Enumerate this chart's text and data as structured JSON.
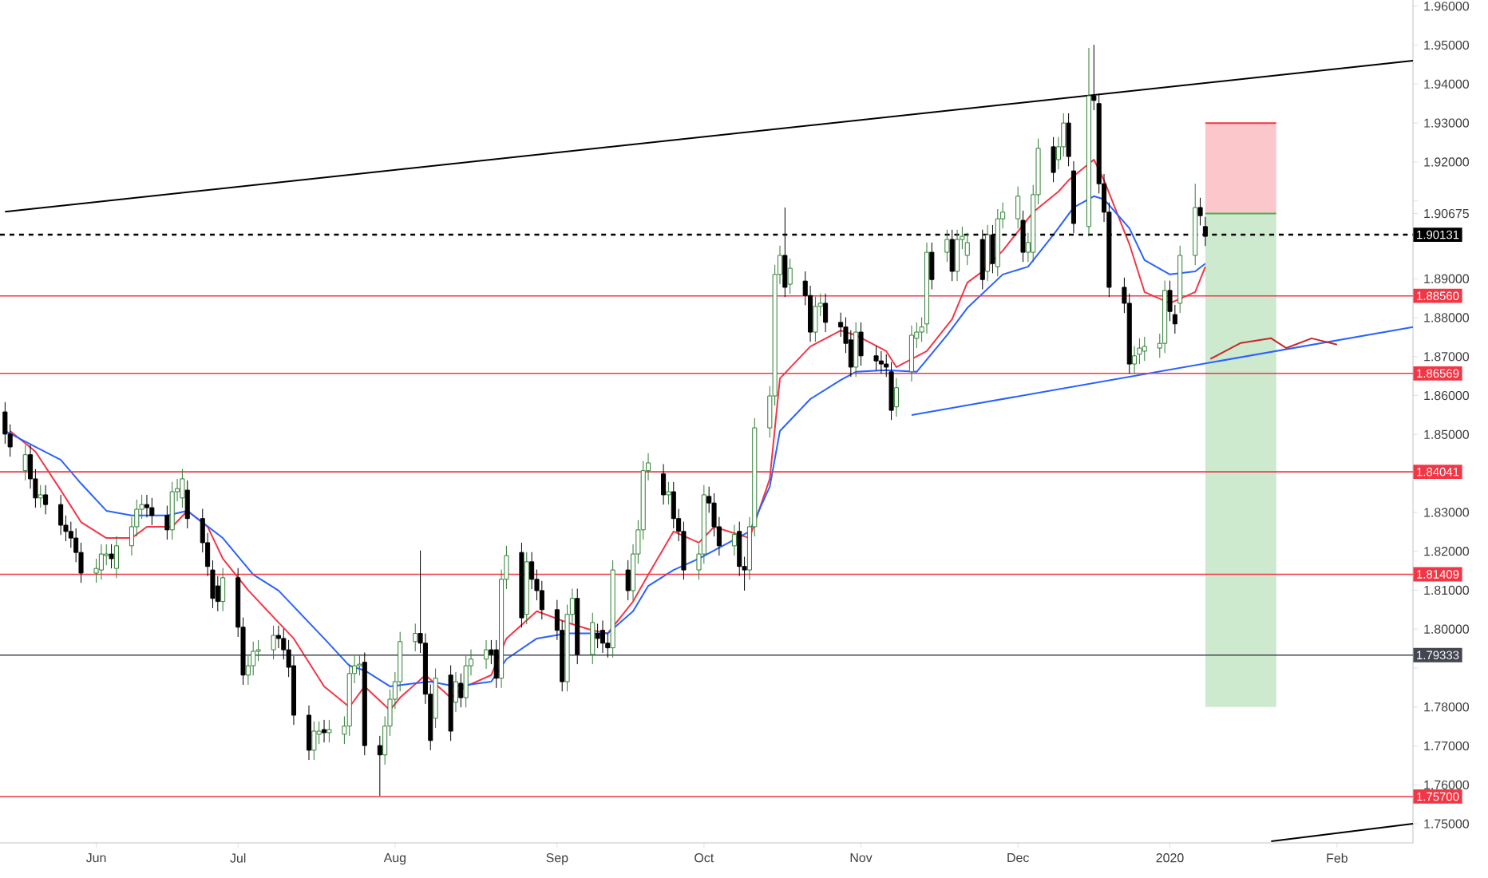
{
  "chart_data": {
    "type": "candlestick",
    "x": [
      "2019-05-16",
      "2019-05-17",
      "2019-05-20",
      "2019-05-21",
      "2019-05-22",
      "2019-05-23",
      "2019-05-24",
      "2019-05-27",
      "2019-05-28",
      "2019-05-29",
      "2019-05-30",
      "2019-05-31",
      "2019-06-03",
      "2019-06-04",
      "2019-06-05",
      "2019-06-06",
      "2019-06-07",
      "2019-06-10",
      "2019-06-11",
      "2019-06-12",
      "2019-06-13",
      "2019-06-14",
      "2019-06-17",
      "2019-06-18",
      "2019-06-19",
      "2019-06-20",
      "2019-06-21",
      "2019-06-24",
      "2019-06-25",
      "2019-06-26",
      "2019-06-27",
      "2019-06-28",
      "2019-07-01",
      "2019-07-02",
      "2019-07-03",
      "2019-07-04",
      "2019-07-05",
      "2019-07-08",
      "2019-07-09",
      "2019-07-10",
      "2019-07-11",
      "2019-07-12",
      "2019-07-15",
      "2019-07-16",
      "2019-07-17",
      "2019-07-18",
      "2019-07-19",
      "2019-07-22",
      "2019-07-23",
      "2019-07-24",
      "2019-07-25",
      "2019-07-26",
      "2019-07-29",
      "2019-07-30",
      "2019-07-31",
      "2019-08-01",
      "2019-08-02",
      "2019-08-05",
      "2019-08-06",
      "2019-08-07",
      "2019-08-08",
      "2019-08-09",
      "2019-08-12",
      "2019-08-13",
      "2019-08-14",
      "2019-08-15",
      "2019-08-16",
      "2019-08-19",
      "2019-08-20",
      "2019-08-21",
      "2019-08-22",
      "2019-08-23",
      "2019-08-26",
      "2019-08-27",
      "2019-08-28",
      "2019-08-29",
      "2019-08-30",
      "2019-09-02",
      "2019-09-03",
      "2019-09-04",
      "2019-09-05",
      "2019-09-06",
      "2019-09-09",
      "2019-09-10",
      "2019-09-11",
      "2019-09-12",
      "2019-09-13",
      "2019-09-16",
      "2019-09-17",
      "2019-09-18",
      "2019-09-19",
      "2019-09-20",
      "2019-09-23",
      "2019-09-24",
      "2019-09-25",
      "2019-09-26",
      "2019-09-27",
      "2019-09-30",
      "2019-10-01",
      "2019-10-02",
      "2019-10-03",
      "2019-10-04",
      "2019-10-07",
      "2019-10-08",
      "2019-10-09",
      "2019-10-10",
      "2019-10-11",
      "2019-10-14",
      "2019-10-15",
      "2019-10-16",
      "2019-10-17",
      "2019-10-18",
      "2019-10-21",
      "2019-10-22",
      "2019-10-23",
      "2019-10-24",
      "2019-10-25",
      "2019-10-28",
      "2019-10-29",
      "2019-10-30",
      "2019-10-31",
      "2019-11-01",
      "2019-11-04",
      "2019-11-05",
      "2019-11-06",
      "2019-11-07",
      "2019-11-08",
      "2019-11-11",
      "2019-11-12",
      "2019-11-13",
      "2019-11-14",
      "2019-11-15",
      "2019-11-18",
      "2019-11-19",
      "2019-11-20",
      "2019-11-21",
      "2019-11-22",
      "2019-11-25",
      "2019-11-26",
      "2019-11-27",
      "2019-11-28",
      "2019-11-29",
      "2019-12-02",
      "2019-12-03",
      "2019-12-04",
      "2019-12-05",
      "2019-12-06",
      "2019-12-09",
      "2019-12-10",
      "2019-12-11",
      "2019-12-12",
      "2019-12-13",
      "2019-12-16",
      "2019-12-17",
      "2019-12-18",
      "2019-12-19",
      "2019-12-20",
      "2019-12-23",
      "2019-12-24",
      "2019-12-25",
      "2019-12-26",
      "2019-12-27",
      "2019-12-30",
      "2019-12-31",
      "2020-01-01",
      "2020-01-02",
      "2020-01-03",
      "2020-01-06",
      "2020-01-07",
      "2020-01-08"
    ],
    "ohlc": [
      [
        1.8558,
        1.8583,
        1.8476,
        1.8501
      ],
      [
        1.8501,
        1.8526,
        1.8443,
        1.8468
      ],
      [
        1.8407,
        1.8473,
        1.8382,
        1.8448
      ],
      [
        1.8448,
        1.8473,
        1.8361,
        1.8386
      ],
      [
        1.8386,
        1.8411,
        1.8312,
        1.8337
      ],
      [
        1.8337,
        1.837,
        1.8312,
        1.8345
      ],
      [
        1.8345,
        1.837,
        1.8295,
        1.832
      ],
      [
        1.832,
        1.8345,
        1.8242,
        1.8267
      ],
      [
        1.8267,
        1.8292,
        1.8226,
        1.8251
      ],
      [
        1.8251,
        1.8276,
        1.8209,
        1.8234
      ],
      [
        1.8234,
        1.8259,
        1.8172,
        1.8197
      ],
      [
        1.8197,
        1.8222,
        1.8119,
        1.8144
      ],
      [
        1.8144,
        1.8181,
        1.8119,
        1.8156
      ],
      [
        1.8152,
        1.8218,
        1.8127,
        1.8193
      ],
      [
        1.8189,
        1.8218,
        1.8164,
        1.8193
      ],
      [
        1.8193,
        1.8218,
        1.8156,
        1.8181
      ],
      [
        1.8156,
        1.8239,
        1.8131,
        1.8214
      ],
      [
        1.8214,
        1.8288,
        1.8189,
        1.8263
      ],
      [
        1.8263,
        1.8333,
        1.8238,
        1.8308
      ],
      [
        1.8308,
        1.8345,
        1.8283,
        1.832
      ],
      [
        1.832,
        1.8345,
        1.8287,
        1.8312
      ],
      [
        1.8312,
        1.8337,
        1.8267,
        1.8292
      ],
      [
        1.8292,
        1.8317,
        1.823,
        1.8255
      ],
      [
        1.8255,
        1.8378,
        1.823,
        1.8353
      ],
      [
        1.8353,
        1.8386,
        1.8328,
        1.8361
      ],
      [
        1.8337,
        1.8411,
        1.8312,
        1.8386
      ],
      [
        1.8357,
        1.8382,
        1.8259,
        1.8284
      ],
      [
        1.8284,
        1.8309,
        1.8197,
        1.8222
      ],
      [
        1.8222,
        1.8247,
        1.8136,
        1.8161
      ],
      [
        1.8152,
        1.8177,
        1.8054,
        1.8079
      ],
      [
        1.8111,
        1.8136,
        1.8046,
        1.8071
      ],
      [
        1.8071,
        1.8157,
        1.8046,
        1.8132
      ],
      [
        1.8132,
        1.8157,
        1.798,
        1.8005
      ],
      [
        1.8005,
        1.803,
        1.7857,
        1.7882
      ],
      [
        1.7882,
        1.7931,
        1.7857,
        1.7906
      ],
      [
        1.7906,
        1.7968,
        1.7881,
        1.7943
      ],
      [
        1.7943,
        1.7972,
        1.7918,
        1.7947
      ],
      [
        1.7947,
        1.8009,
        1.7922,
        1.7984
      ],
      [
        1.7984,
        1.8009,
        1.7951,
        1.7976
      ],
      [
        1.7976,
        1.8001,
        1.7922,
        1.7947
      ],
      [
        1.7947,
        1.7972,
        1.7877,
        1.7902
      ],
      [
        1.7906,
        1.7931,
        1.7754,
        1.7779
      ],
      [
        1.7779,
        1.7804,
        1.7664,
        1.7689
      ],
      [
        1.7689,
        1.7763,
        1.7664,
        1.7738
      ],
      [
        1.773,
        1.7763,
        1.7705,
        1.7738
      ],
      [
        1.7742,
        1.7767,
        1.7709,
        1.7734
      ],
      [
        1.7734,
        1.7767,
        1.7709,
        1.7742
      ],
      [
        1.773,
        1.7776,
        1.7705,
        1.7751
      ],
      [
        1.7751,
        1.7911,
        1.7726,
        1.7886
      ],
      [
        1.7886,
        1.7931,
        1.7861,
        1.7906
      ],
      [
        1.7906,
        1.7935,
        1.7881,
        1.791
      ],
      [
        1.7915,
        1.794,
        1.7676,
        1.7701
      ],
      [
        1.7701,
        1.7726,
        1.7572,
        1.7677
      ],
      [
        1.7677,
        1.7776,
        1.7652,
        1.7751
      ],
      [
        1.7751,
        1.7845,
        1.7726,
        1.782
      ],
      [
        1.782,
        1.789,
        1.7795,
        1.7865
      ],
      [
        1.7865,
        1.7993,
        1.784,
        1.7968
      ],
      [
        1.7968,
        1.8014,
        1.7943,
        1.7989
      ],
      [
        1.7989,
        1.8202,
        1.7939,
        1.7964
      ],
      [
        1.7964,
        1.7989,
        1.7808,
        1.7833
      ],
      [
        1.7833,
        1.7858,
        1.7689,
        1.7714
      ],
      [
        1.7771,
        1.7899,
        1.7746,
        1.7874
      ],
      [
        1.7882,
        1.7907,
        1.7713,
        1.7738
      ],
      [
        1.7812,
        1.789,
        1.7787,
        1.7865
      ],
      [
        1.7861,
        1.7886,
        1.7799,
        1.7824
      ],
      [
        1.7824,
        1.7931,
        1.7799,
        1.7906
      ],
      [
        1.7906,
        1.7948,
        1.7881,
        1.7923
      ],
      [
        1.7923,
        1.7972,
        1.7898,
        1.7947
      ],
      [
        1.7947,
        1.7972,
        1.791,
        1.7935
      ],
      [
        1.7947,
        1.7972,
        1.7849,
        1.7874
      ],
      [
        1.7874,
        1.8153,
        1.7849,
        1.8128
      ],
      [
        1.8128,
        1.8214,
        1.8103,
        1.8189
      ],
      [
        1.8197,
        1.8222,
        1.8004,
        1.8029
      ],
      [
        1.8038,
        1.8198,
        1.8013,
        1.8173
      ],
      [
        1.8173,
        1.8198,
        1.8103,
        1.8128
      ],
      [
        1.8128,
        1.8153,
        1.8074,
        1.8099
      ],
      [
        1.8099,
        1.8124,
        1.8025,
        1.805
      ],
      [
        1.805,
        1.8075,
        1.7972,
        1.7997
      ],
      [
        1.7997,
        1.8022,
        1.784,
        1.7865
      ],
      [
        1.7865,
        1.8063,
        1.784,
        1.8038
      ],
      [
        1.8038,
        1.8104,
        1.8013,
        1.8079
      ],
      [
        1.8079,
        1.8104,
        1.791,
        1.7935
      ],
      [
        1.7935,
        1.8042,
        1.791,
        1.8017
      ],
      [
        1.7989,
        1.8014,
        1.7951,
        1.7976
      ],
      [
        1.7997,
        1.8022,
        1.7939,
        1.7964
      ],
      [
        1.7964,
        1.7989,
        1.7927,
        1.7952
      ],
      [
        1.7952,
        1.8177,
        1.7927,
        1.8152
      ],
      [
        1.8152,
        1.8177,
        1.8074,
        1.8099
      ],
      [
        1.8099,
        1.8218,
        1.8074,
        1.8193
      ],
      [
        1.8193,
        1.828,
        1.8168,
        1.8255
      ],
      [
        1.8255,
        1.8432,
        1.823,
        1.8407
      ],
      [
        1.8407,
        1.8452,
        1.8382,
        1.8427
      ],
      [
        1.8399,
        1.8424,
        1.832,
        1.8345
      ],
      [
        1.8345,
        1.8378,
        1.832,
        1.8353
      ],
      [
        1.8353,
        1.8378,
        1.8259,
        1.8284
      ],
      [
        1.8284,
        1.8309,
        1.8226,
        1.8251
      ],
      [
        1.8251,
        1.8276,
        1.8127,
        1.8152
      ],
      [
        1.8152,
        1.8218,
        1.8127,
        1.8193
      ],
      [
        1.8193,
        1.837,
        1.8168,
        1.8345
      ],
      [
        1.8341,
        1.8366,
        1.8299,
        1.8324
      ],
      [
        1.8324,
        1.8349,
        1.8238,
        1.8263
      ],
      [
        1.8263,
        1.8288,
        1.8189,
        1.8214
      ],
      [
        1.8214,
        1.8268,
        1.8189,
        1.8243
      ],
      [
        1.8251,
        1.8276,
        1.8136,
        1.8161
      ],
      [
        1.8161,
        1.8186,
        1.8099,
        1.8152
      ],
      [
        1.8152,
        1.8288,
        1.8127,
        1.8263
      ],
      [
        1.8263,
        1.8542,
        1.8238,
        1.8517
      ],
      [
        1.8517,
        1.8624,
        1.8492,
        1.8599
      ],
      [
        1.8599,
        1.8936,
        1.8574,
        1.8911
      ],
      [
        1.8911,
        1.8985,
        1.8886,
        1.896
      ],
      [
        1.896,
        1.9083,
        1.8853,
        1.8878
      ],
      [
        1.8886,
        1.8952,
        1.8861,
        1.8927
      ],
      [
        1.8894,
        1.8919,
        1.8832,
        1.8857
      ],
      [
        1.8857,
        1.8882,
        1.8738,
        1.8763
      ],
      [
        1.8763,
        1.8854,
        1.8738,
        1.8829
      ],
      [
        1.8829,
        1.8862,
        1.8804,
        1.8837
      ],
      [
        1.8837,
        1.8862,
        1.8763,
        1.8788
      ],
      [
        1.8788,
        1.8813,
        1.8751,
        1.8776
      ],
      [
        1.8776,
        1.8801,
        1.8709,
        1.8734
      ],
      [
        1.8743,
        1.8768,
        1.8648,
        1.8673
      ],
      [
        1.8673,
        1.8788,
        1.8648,
        1.8763
      ],
      [
        1.8763,
        1.8788,
        1.8677,
        1.8702
      ],
      [
        1.8702,
        1.8727,
        1.8664,
        1.8689
      ],
      [
        1.8689,
        1.8714,
        1.8656,
        1.8681
      ],
      [
        1.8681,
        1.8706,
        1.8648,
        1.8673
      ],
      [
        1.8661,
        1.8686,
        1.8537,
        1.8562
      ],
      [
        1.8571,
        1.8645,
        1.8546,
        1.862
      ],
      [
        1.8661,
        1.878,
        1.8636,
        1.8755
      ],
      [
        1.8747,
        1.8788,
        1.8722,
        1.8763
      ],
      [
        1.8763,
        1.8801,
        1.8738,
        1.8776
      ],
      [
        1.8784,
        1.8993,
        1.8759,
        1.8968
      ],
      [
        1.8968,
        1.8993,
        1.8873,
        1.8898
      ],
      [
        1.8968,
        1.9026,
        1.8943,
        1.9001
      ],
      [
        1.9001,
        1.9026,
        1.8894,
        1.8919
      ],
      [
        1.8919,
        1.9026,
        1.8894,
        1.9001
      ],
      [
        1.9001,
        1.9034,
        1.8976,
        1.9009
      ],
      [
        1.896,
        1.9018,
        1.8935,
        1.8993
      ],
      [
        1.9001,
        1.9026,
        1.8873,
        1.8898
      ],
      [
        1.8919,
        1.9038,
        1.8894,
        1.9013
      ],
      [
        1.9013,
        1.9038,
        1.8914,
        1.8939
      ],
      [
        1.8931,
        1.9079,
        1.8906,
        1.9054
      ],
      [
        1.9054,
        1.9096,
        1.9029,
        1.9071
      ],
      [
        1.9054,
        1.9137,
        1.9029,
        1.9112
      ],
      [
        1.905,
        1.9075,
        1.8943,
        1.8968
      ],
      [
        1.8968,
        1.9018,
        1.8943,
        1.8993
      ],
      [
        1.8968,
        1.9141,
        1.8943,
        1.9116
      ],
      [
        1.9116,
        1.926,
        1.9091,
        1.9235
      ],
      [
        1.9239,
        1.9264,
        1.9148,
        1.9173
      ],
      [
        1.9206,
        1.9264,
        1.9181,
        1.9239
      ],
      [
        1.9239,
        1.9325,
        1.9214,
        1.93
      ],
      [
        1.93,
        1.9325,
        1.9189,
        1.9214
      ],
      [
        1.9177,
        1.9202,
        1.9017,
        1.9042
      ],
      [
        1.9034,
        1.9493,
        1.9009,
        1.937
      ],
      [
        1.937,
        1.9501,
        1.9333,
        1.9358
      ],
      [
        1.935,
        1.9375,
        1.9119,
        1.9144
      ],
      [
        1.9144,
        1.9169,
        1.9046,
        1.9071
      ],
      [
        1.9071,
        1.9096,
        1.8853,
        1.8878
      ],
      [
        1.8878,
        1.8903,
        1.8812,
        1.8837
      ],
      [
        1.8837,
        1.8862,
        1.8656,
        1.8681
      ],
      [
        1.8681,
        1.8727,
        1.8656,
        1.8702
      ],
      [
        1.8706,
        1.8747,
        1.8681,
        1.8722
      ],
      [
        1.8714,
        1.8751,
        1.8689,
        1.8726
      ],
      [
        1.8722,
        1.8759,
        1.8697,
        1.8734
      ],
      [
        1.8734,
        1.8895,
        1.8709,
        1.887
      ],
      [
        1.887,
        1.8895,
        1.8791,
        1.8816
      ],
      [
        1.8808,
        1.8833,
        1.8759,
        1.8784
      ],
      [
        1.8837,
        1.8985,
        1.8812,
        1.896
      ],
      [
        1.896,
        1.9144,
        1.8935,
        1.9083
      ],
      [
        1.9083,
        1.9108,
        1.9037,
        1.9062
      ],
      [
        1.9034,
        1.9059,
        1.8984,
        1.9009
      ]
    ],
    "series": [
      {
        "type": "line",
        "color": "#f23645",
        "x": [
          "2020-01-08",
          "2020-01-22"
        ],
        "values": [
          1.93,
          1.93
        ],
        "upper": [
          1.93,
          1.93
        ],
        "lower": [
          1.90675,
          1.90675
        ]
      },
      {
        "type": "line",
        "color": "#4caf50",
        "x": [
          "2020-01-08",
          "2020-01-22"
        ],
        "values": [
          1.90675,
          1.90675
        ],
        "upper": [
          1.90675,
          1.90675
        ],
        "lower": [
          1.78,
          1.78
        ]
      },
      {
        "type": "line",
        "color": "#f23645",
        "x": [
          "2019-05-17",
          "2019-05-22",
          "2019-05-27",
          "2019-05-31",
          "2019-06-05",
          "2019-06-10",
          "2019-06-13",
          "2019-06-18",
          "2019-06-21",
          "2019-06-25",
          "2019-06-28",
          "2019-07-03",
          "2019-07-09",
          "2019-07-12",
          "2019-07-18",
          "2019-07-23",
          "2019-07-26",
          "2019-07-31",
          "2019-08-02",
          "2019-08-07",
          "2019-08-12",
          "2019-08-15",
          "2019-08-20",
          "2019-08-23",
          "2019-08-29",
          "2019-09-04",
          "2019-09-09",
          "2019-09-12",
          "2019-09-17",
          "2019-09-20",
          "2019-09-25",
          "2019-09-30",
          "2019-10-03",
          "2019-10-10",
          "2019-10-14",
          "2019-10-16",
          "2019-10-22",
          "2019-10-28",
          "2019-10-31",
          "2019-11-06",
          "2019-11-08",
          "2019-11-14",
          "2019-11-19",
          "2019-11-22",
          "2019-11-25",
          "2019-11-29",
          "2019-12-05",
          "2019-12-10",
          "2019-12-12",
          "2019-12-17",
          "2019-12-19",
          "2019-12-24",
          "2019-12-27",
          "2020-01-01",
          "2020-01-06",
          "2020-01-08"
        ],
        "values": [
          1.8509,
          1.8456,
          1.8357,
          1.8275,
          1.8234,
          1.8234,
          1.8263,
          1.8263,
          1.8304,
          1.8263,
          1.8181,
          1.81,
          1.8017,
          1.7976,
          1.7853,
          1.78,
          1.7853,
          1.7792,
          1.7824,
          1.7882,
          1.7824,
          1.7853,
          1.7882,
          1.7976,
          1.8046,
          1.8017,
          1.7997,
          1.7989,
          1.8071,
          1.814,
          1.8251,
          1.8222,
          1.8263,
          1.8234,
          1.8386,
          1.8644,
          1.8726,
          1.8767,
          1.8755,
          1.8714,
          1.8673,
          1.8714,
          1.8796,
          1.889,
          1.8919,
          1.8972,
          1.9071,
          1.9124,
          1.9153,
          1.9206,
          1.9153,
          1.8989,
          1.8866,
          1.8837,
          1.8866,
          1.8931
        ]
      },
      {
        "type": "line",
        "color": "#2962ff",
        "x": [
          "2019-05-16",
          "2019-05-22",
          "2019-05-27",
          "2019-05-31",
          "2019-06-05",
          "2019-06-10",
          "2019-06-17",
          "2019-06-21",
          "2019-06-28",
          "2019-07-04",
          "2019-07-09",
          "2019-07-12",
          "2019-07-18",
          "2019-07-23",
          "2019-07-26",
          "2019-07-31",
          "2019-08-05",
          "2019-08-08",
          "2019-08-13",
          "2019-08-20",
          "2019-08-23",
          "2019-08-29",
          "2019-09-04",
          "2019-09-09",
          "2019-09-12",
          "2019-09-17",
          "2019-09-20",
          "2019-09-25",
          "2019-09-30",
          "2019-10-03",
          "2019-10-10",
          "2019-10-14",
          "2019-10-16",
          "2019-10-22",
          "2019-10-28",
          "2019-10-31",
          "2019-11-06",
          "2019-11-12",
          "2019-11-18",
          "2019-11-22",
          "2019-11-29",
          "2019-12-04",
          "2019-12-09",
          "2019-12-13",
          "2019-12-17",
          "2019-12-19",
          "2019-12-24",
          "2019-12-27",
          "2020-01-01",
          "2020-01-06",
          "2020-01-08"
        ],
        "values": [
          1.8509,
          1.8468,
          1.8435,
          1.8374,
          1.8304,
          1.8292,
          1.8292,
          1.8304,
          1.8234,
          1.814,
          1.8099,
          1.8058,
          1.7976,
          1.7906,
          1.7894,
          1.7853,
          1.7861,
          1.7865,
          1.7853,
          1.7865,
          1.7923,
          1.7976,
          1.7989,
          1.7989,
          1.7989,
          1.8046,
          1.8111,
          1.8152,
          1.8181,
          1.8202,
          1.8251,
          1.8366,
          1.8509,
          1.8591,
          1.864,
          1.8661,
          1.8665,
          1.8661,
          1.8755,
          1.8825,
          1.8911,
          1.8931,
          1.9013,
          1.9083,
          1.9112,
          1.9104,
          1.903,
          1.8948,
          1.8911,
          1.8919,
          1.8939
        ]
      },
      {
        "type": "line",
        "color": "#000000",
        "x": [
          "2019-05-16",
          "2020-02-18"
        ],
        "values": [
          1.9072,
          1.946
        ]
      },
      {
        "type": "line",
        "color": "#000000",
        "x": [
          "2020-01-21",
          "2020-02-18"
        ],
        "values": [
          1.7455,
          1.75
        ]
      },
      {
        "type": "line",
        "color": "#2962ff",
        "x": [
          "2019-11-11",
          "2020-02-18"
        ],
        "values": [
          1.855,
          1.8776
        ]
      },
      {
        "type": "line",
        "color": "#c62828",
        "x": [
          "2020-01-09",
          "2020-01-15",
          "2020-01-21",
          "2020-01-24",
          "2020-01-29",
          "2020-02-03"
        ],
        "values": [
          1.8694,
          1.8735,
          1.8747,
          1.8722,
          1.8747,
          1.8731
        ]
      }
    ],
    "xlim": [
      "2019-05-15",
      "2020-02-18"
    ],
    "xticks": [
      {
        "value": "2019-06-03",
        "label": "Jun"
      },
      {
        "value": "2019-07-01",
        "label": "Jul"
      },
      {
        "value": "2019-08-01",
        "label": "Aug"
      },
      {
        "value": "2019-09-02",
        "label": "Sep"
      },
      {
        "value": "2019-10-01",
        "label": "Oct"
      },
      {
        "value": "2019-11-01",
        "label": "Nov"
      },
      {
        "value": "2019-12-02",
        "label": "Dec"
      },
      {
        "value": "2020-01-01",
        "label": "2020"
      },
      {
        "value": "2020-02-03",
        "label": "Feb"
      }
    ],
    "ylim": [
      1.7451,
      1.9616
    ],
    "yticks": [
      {
        "value": 1.75,
        "label": "1.75000"
      },
      {
        "value": 1.76,
        "label": "1.76000"
      },
      {
        "value": 1.77,
        "label": "1.77000"
      },
      {
        "value": 1.78,
        "label": "1.78000"
      },
      {
        "value": 1.79,
        "label": null
      },
      {
        "value": 1.8,
        "label": "1.80000"
      },
      {
        "value": 1.81,
        "label": "1.81000"
      },
      {
        "value": 1.82,
        "label": "1.82000"
      },
      {
        "value": 1.83,
        "label": "1.83000"
      },
      {
        "value": 1.84,
        "label": null
      },
      {
        "value": 1.85,
        "label": "1.85000"
      },
      {
        "value": 1.86,
        "label": "1.86000"
      },
      {
        "value": 1.87,
        "label": "1.87000"
      },
      {
        "value": 1.88,
        "label": "1.88000"
      },
      {
        "value": 1.89,
        "label": "1.89000"
      },
      {
        "value": 1.9,
        "label": null
      },
      {
        "value": 1.90675,
        "label": "1.90675"
      },
      {
        "value": 1.91,
        "label": null
      },
      {
        "value": 1.92,
        "label": "1.92000"
      },
      {
        "value": 1.93,
        "label": "1.93000"
      },
      {
        "value": 1.94,
        "label": "1.94000"
      },
      {
        "value": 1.95,
        "label": "1.95000"
      },
      {
        "value": 1.96,
        "label": "1.96000"
      }
    ],
    "ref_lines": [
      {
        "axis": "y",
        "value": 1.90131,
        "label": "1.90131",
        "color": "#000000",
        "line_style": "dashed"
      },
      {
        "axis": "y",
        "value": 1.8856,
        "label": "1.88560",
        "color": "#f23645"
      },
      {
        "axis": "y",
        "value": 1.86569,
        "label": "1.86569",
        "color": "#f23645"
      },
      {
        "axis": "y",
        "value": 1.84041,
        "label": "1.84041",
        "color": "#f23645"
      },
      {
        "axis": "y",
        "value": 1.81409,
        "label": "1.81409",
        "color": "#f23645"
      },
      {
        "axis": "y",
        "value": 1.79333,
        "label": "1.79333",
        "color": "#434651"
      },
      {
        "axis": "y",
        "value": 1.757,
        "label": "1.75700",
        "color": "#f23645"
      }
    ]
  }
}
